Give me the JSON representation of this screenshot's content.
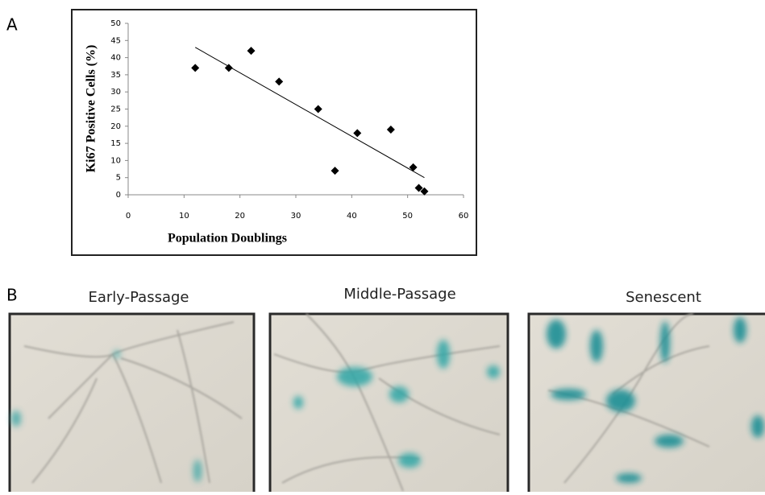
{
  "panel_labels": [
    "A",
    "B"
  ],
  "chart_data": {
    "type": "scatter",
    "x_label": "Population Doublings",
    "y_label": "Ki67 Positive Cells (%)",
    "x": [
      12,
      18,
      22,
      27,
      34,
      37,
      41,
      47,
      51,
      52,
      53
    ],
    "values": [
      37,
      37,
      42,
      33,
      25,
      7,
      18,
      19,
      8,
      2,
      1
    ],
    "color": "#000000",
    "trendline": {
      "x": [
        12,
        53
      ],
      "values": [
        43,
        5
      ],
      "color": "#000000"
    },
    "xlim": [
      0,
      60
    ],
    "xticks": [
      0,
      10,
      20,
      30,
      40,
      50,
      60
    ],
    "ylim": [
      0,
      50
    ],
    "yticks": [
      0,
      5,
      10,
      15,
      20,
      25,
      30,
      35,
      40,
      45,
      50
    ]
  },
  "images": [
    {
      "title": "Early-Passage"
    },
    {
      "title": "Middle-Passage"
    },
    {
      "title": "Senescent"
    }
  ]
}
